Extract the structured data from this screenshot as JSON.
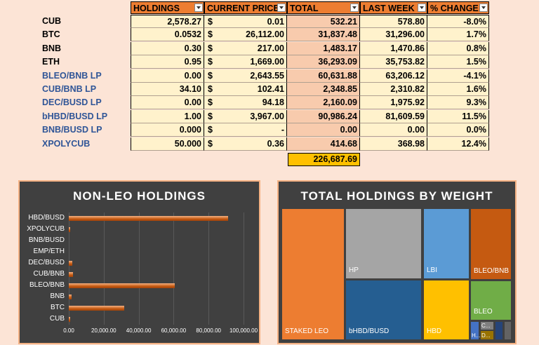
{
  "table": {
    "headers": [
      "HOLDINGS",
      "CURRENT PRICE",
      "TOTAL",
      "LAST WEEK",
      "% CHANGE"
    ],
    "currency_symbol": "$",
    "rows": [
      {
        "label": "CUB",
        "label_color": "#000000",
        "holdings": "2,578.27",
        "price": "0.01",
        "total": "532.21",
        "last_week": "578.80",
        "change": "-8.0%"
      },
      {
        "label": "BTC",
        "label_color": "#000000",
        "holdings": "0.0532",
        "price": "26,112.00",
        "total": "31,837.48",
        "last_week": "31,296.00",
        "change": "1.7%"
      },
      {
        "label": "BNB",
        "label_color": "#000000",
        "holdings": "0.30",
        "price": "217.00",
        "total": "1,483.17",
        "last_week": "1,470.86",
        "change": "0.8%"
      },
      {
        "label": "ETH",
        "label_color": "#000000",
        "holdings": "0.95",
        "price": "1,669.00",
        "total": "36,293.09",
        "last_week": "35,753.82",
        "change": "1.5%"
      },
      {
        "label": "BLEO/BNB LP",
        "label_color": "#2f5597",
        "holdings": "0.00",
        "price": "2,643.55",
        "total": "60,631.88",
        "last_week": "63,206.12",
        "change": "-4.1%"
      },
      {
        "label": "CUB/BNB LP",
        "label_color": "#2f5597",
        "holdings": "34.10",
        "price": "102.41",
        "total": "2,348.85",
        "last_week": "2,310.82",
        "change": "1.6%"
      },
      {
        "label": "DEC/BUSD LP",
        "label_color": "#2f5597",
        "holdings": "0.00",
        "price": "94.18",
        "total": "2,160.09",
        "last_week": "1,975.92",
        "change": "9.3%"
      },
      {
        "label": "bHBD/BUSD LP",
        "label_color": "#2f5597",
        "holdings": "1.00",
        "price": "3,967.00",
        "total": "90,986.24",
        "last_week": "81,609.59",
        "change": "11.5%"
      },
      {
        "label": "BNB/BUSD LP",
        "label_color": "#2f5597",
        "holdings": "0.000",
        "price": "-",
        "total": "0.00",
        "last_week": "0.00",
        "change": "0.0%"
      },
      {
        "label": "XPOLYCUB",
        "label_color": "#2f5597",
        "holdings": "50.000",
        "price": "0.36",
        "total": "414.68",
        "last_week": "368.98",
        "change": "12.4%"
      }
    ],
    "grand_total": "226,687.69"
  },
  "chart_data": [
    {
      "type": "bar",
      "title": "NON-LEO HOLDINGS",
      "orientation": "horizontal",
      "categories": [
        "HBD/BUSD",
        "XPOLYCUB",
        "BNB/BUSD",
        "EMP/ETH",
        "DEC/BUSD",
        "CUB/BNB",
        "BLEO/BNB",
        "BNB",
        "BTC",
        "CUB"
      ],
      "values": [
        90986,
        415,
        0,
        0,
        2160,
        2349,
        60632,
        1483,
        31837,
        532
      ],
      "xlim": [
        0,
        100000
      ],
      "xticks": [
        "0.00",
        "20,000.00",
        "40,000.00",
        "60,000.00",
        "80,000.00",
        "100,000.00"
      ],
      "bar_color": "#c55a11",
      "grid": true
    },
    {
      "type": "treemap",
      "title": "TOTAL HOLDINGS BY WEIGHT",
      "cells": [
        {
          "label": "STAKED LEO",
          "color": "#ed7d31"
        },
        {
          "label": "HP",
          "color": "#a5a5a5"
        },
        {
          "label": "bHBD/BUSD",
          "color": "#255e91"
        },
        {
          "label": "LBI",
          "color": "#5b9bd5"
        },
        {
          "label": "HBD",
          "color": "#ffc000"
        },
        {
          "label": "BLEO/BNB",
          "color": "#c55a11"
        },
        {
          "label": "BLEO",
          "color": "#70ad47"
        },
        {
          "label": "H...",
          "color": "#4472c4"
        },
        {
          "label": "C...",
          "color": "#7f7f7f"
        },
        {
          "label": "D...",
          "color": "#997300"
        }
      ]
    }
  ]
}
